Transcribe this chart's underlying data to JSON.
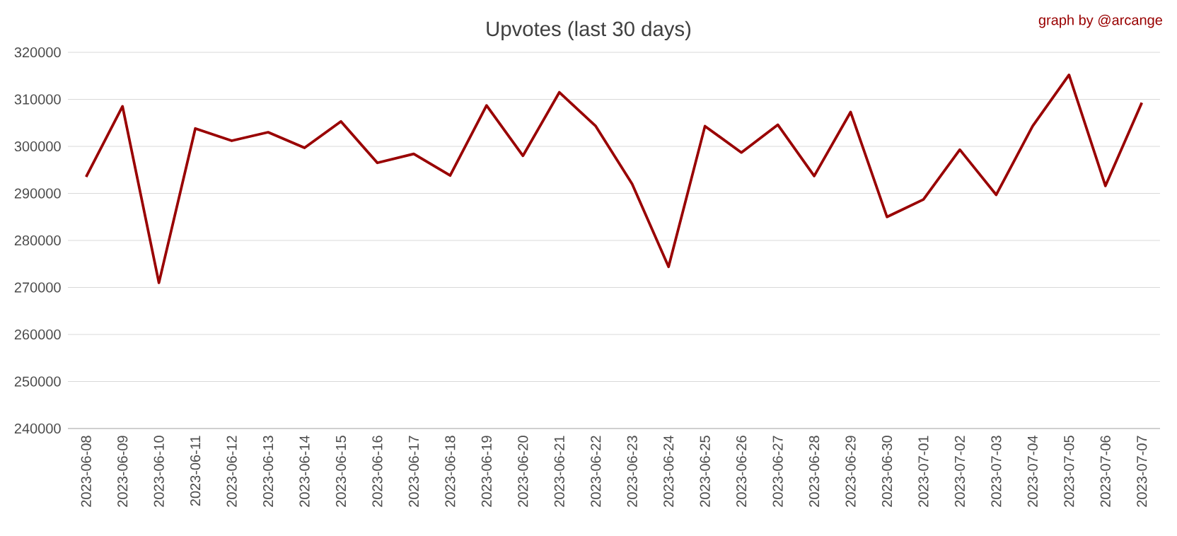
{
  "chart_data": {
    "type": "line",
    "title": "Upvotes (last 30 days)",
    "annotations": [
      "graph by @arcange"
    ],
    "categories": [
      "2023-06-08",
      "2023-06-09",
      "2023-06-10",
      "2023-06-11",
      "2023-06-12",
      "2023-06-13",
      "2023-06-14",
      "2023-06-15",
      "2023-06-16",
      "2023-06-17",
      "2023-06-18",
      "2023-06-19",
      "2023-06-20",
      "2023-06-21",
      "2023-06-22",
      "2023-06-23",
      "2023-06-24",
      "2023-06-25",
      "2023-06-26",
      "2023-06-27",
      "2023-06-28",
      "2023-06-29",
      "2023-06-30",
      "2023-07-01",
      "2023-07-02",
      "2023-07-03",
      "2023-07-04",
      "2023-07-05",
      "2023-07-06",
      "2023-07-07"
    ],
    "series": [
      {
        "color": "#990000",
        "values": [
          293500,
          308500,
          271000,
          303800,
          301200,
          303000,
          299700,
          305300,
          296500,
          298400,
          293800,
          308700,
          298000,
          311500,
          304300,
          292000,
          274400,
          304300,
          298700,
          304600,
          293700,
          307300,
          285000,
          288700,
          299300,
          289700,
          304300,
          315200,
          291600,
          309300
        ]
      }
    ],
    "ylim": [
      240000,
      320000
    ],
    "yticks": [
      240000,
      250000,
      260000,
      270000,
      280000,
      290000,
      300000,
      310000,
      320000
    ],
    "grid": "y",
    "marker": "none",
    "line_style": "solid"
  }
}
